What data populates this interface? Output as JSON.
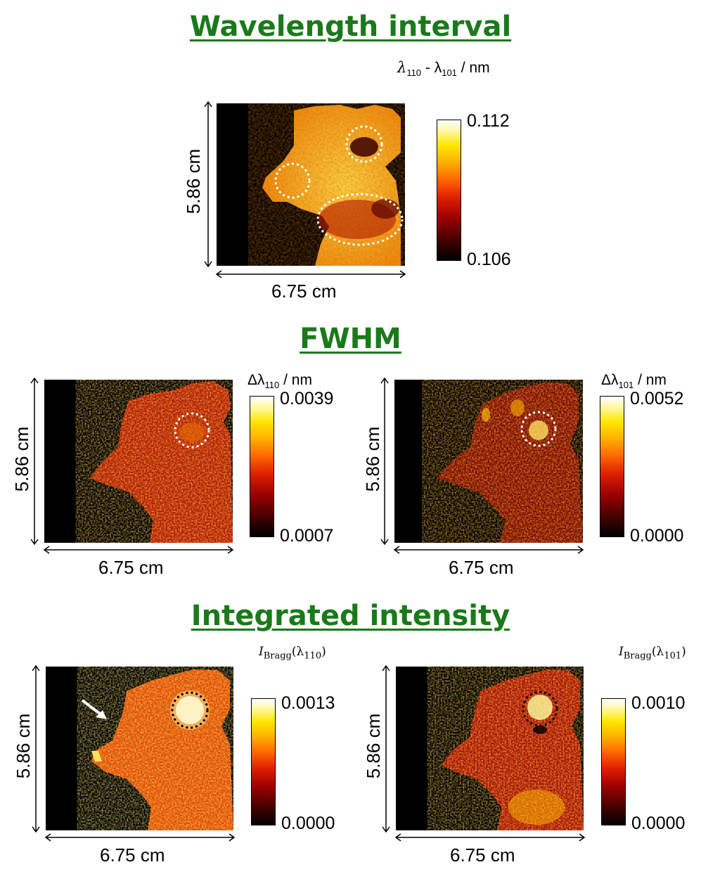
{
  "sections": {
    "wavelength_title": "Wavelength interval",
    "fwhm_title": "FWHM",
    "intensity_title": "Integrated intensity"
  },
  "dimensions": {
    "width": "6.75 cm",
    "height": "5.86 cm"
  },
  "panels": {
    "wavelength": {
      "unit_prefix": "λ",
      "unit_sub1": "110",
      "unit_mid": " - λ",
      "unit_sub2": "101",
      "unit_suffix": " / nm",
      "cbar_max": "0.112",
      "cbar_min": "0.106"
    },
    "fwhm_110": {
      "unit_prefix": "Δλ",
      "unit_sub": "110",
      "unit_suffix": " / nm",
      "cbar_max": "0.0039",
      "cbar_min": "0.0007"
    },
    "fwhm_101": {
      "unit_prefix": "Δλ",
      "unit_sub": "101",
      "unit_suffix": " / nm",
      "cbar_max": "0.0052",
      "cbar_min": "0.0000"
    },
    "intensity_110": {
      "unit_prefix": "I",
      "unit_sub": "Bragg",
      "unit_arg": "(λ",
      "unit_argsub": "110",
      "unit_close": ")",
      "cbar_max": "0.0013",
      "cbar_min": "0.0000"
    },
    "intensity_101": {
      "unit_prefix": "I",
      "unit_sub": "Bragg",
      "unit_arg": "(λ",
      "unit_argsub": "101",
      "unit_close": ")",
      "cbar_max": "0.0010",
      "cbar_min": "0.0000"
    }
  },
  "colors": {
    "title_green": "#1a7a1a",
    "colormap": "black-red-yellow-white"
  }
}
